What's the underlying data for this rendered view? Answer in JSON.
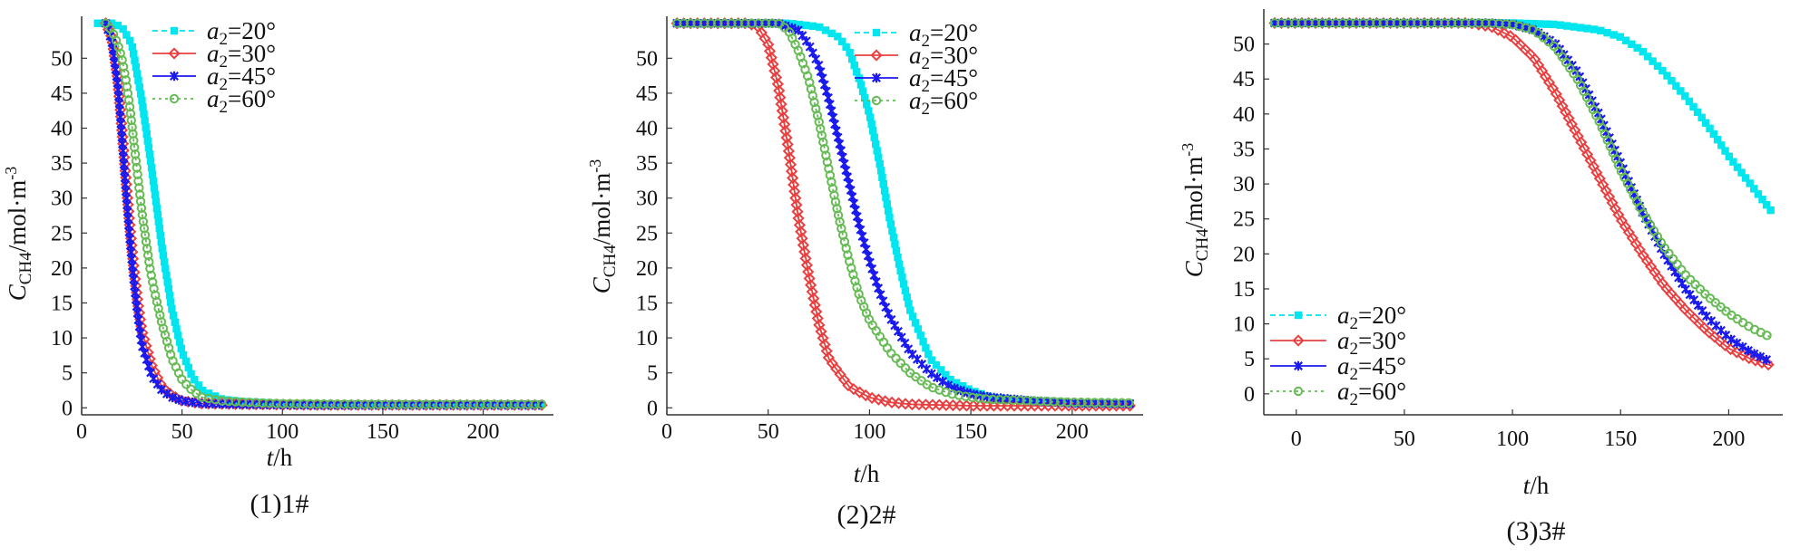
{
  "chart_data": [
    {
      "type": "line",
      "caption": "(1)1#",
      "ylabel": "C_CH4/mol·m^-3",
      "xlabel": "t/h",
      "xlim": [
        0,
        235
      ],
      "ylim": [
        -1,
        56
      ],
      "xticks": [
        0,
        50,
        100,
        150,
        200
      ],
      "yticks": [
        0,
        5,
        10,
        15,
        20,
        25,
        30,
        35,
        40,
        45,
        50
      ],
      "legend_position": "top-right",
      "series": [
        {
          "name": "a2=20°",
          "color": "#00e5ee",
          "marker": "square",
          "dash": "6,4",
          "x": [
            8,
            15,
            20,
            25,
            30,
            35,
            40,
            45,
            50,
            55,
            60,
            70,
            80,
            100,
            130,
            160,
            200,
            230
          ],
          "y": [
            55,
            55,
            54.5,
            52,
            44,
            34,
            23,
            14,
            8,
            4.5,
            2.5,
            1.2,
            0.9,
            0.6,
            0.5,
            0.5,
            0.5,
            0.5
          ]
        },
        {
          "name": "a2=30°",
          "color": "#e84040",
          "marker": "diamond",
          "dash": "",
          "x": [
            12,
            15,
            18,
            20,
            22,
            24,
            26,
            28,
            30,
            35,
            40,
            45,
            50,
            60,
            80,
            120,
            180,
            230
          ],
          "y": [
            55,
            53,
            47,
            40,
            33,
            26,
            20,
            15,
            11,
            6,
            3,
            1.8,
            1,
            0.6,
            0.5,
            0.4,
            0.4,
            0.4
          ]
        },
        {
          "name": "a2=45°",
          "color": "#1a1aee",
          "marker": "x",
          "dash": "",
          "x": [
            12,
            15,
            18,
            20,
            22,
            24,
            26,
            28,
            30,
            35,
            40,
            45,
            50,
            60,
            80,
            120,
            180,
            230
          ],
          "y": [
            55,
            52.5,
            46,
            39,
            31,
            24,
            18,
            13,
            9,
            4.5,
            2.5,
            1.5,
            1,
            0.6,
            0.5,
            0.4,
            0.4,
            0.4
          ]
        },
        {
          "name": "a2=60°",
          "color": "#66bb55",
          "marker": "circle",
          "dash": "3,4",
          "x": [
            12,
            15,
            18,
            20,
            22,
            24,
            26,
            28,
            30,
            32,
            34,
            36,
            40,
            45,
            50,
            55,
            60,
            70,
            80,
            100,
            140,
            230
          ],
          "y": [
            55,
            54,
            52,
            50,
            47,
            43,
            38,
            33,
            28,
            24,
            20,
            17,
            12,
            7,
            4,
            2.5,
            1.5,
            1,
            0.8,
            0.6,
            0.5,
            0.5
          ]
        }
      ]
    },
    {
      "type": "line",
      "caption": "(2)2#",
      "ylabel": "C_CH4/mol·m^-3",
      "xlabel": "t/h",
      "xlim": [
        0,
        235
      ],
      "ylim": [
        -1,
        56
      ],
      "xticks": [
        0,
        50,
        100,
        150,
        200
      ],
      "yticks": [
        0,
        5,
        10,
        15,
        20,
        25,
        30,
        35,
        40,
        45,
        50
      ],
      "legend_position": "top-right",
      "series": [
        {
          "name": "a2=20°",
          "color": "#00e5ee",
          "marker": "square",
          "dash": "6,4",
          "x": [
            5,
            20,
            40,
            60,
            75,
            85,
            90,
            95,
            100,
            105,
            110,
            115,
            120,
            130,
            140,
            150,
            160,
            180,
            200,
            230
          ],
          "y": [
            55,
            55,
            55,
            55,
            54.5,
            53,
            51,
            47,
            42,
            35,
            27,
            20,
            14,
            7,
            4,
            2.5,
            1.5,
            1,
            0.6,
            0.5
          ]
        },
        {
          "name": "a2=30°",
          "color": "#e84040",
          "marker": "diamond",
          "dash": "",
          "x": [
            5,
            20,
            40,
            45,
            50,
            55,
            60,
            65,
            70,
            75,
            80,
            90,
            100,
            110,
            120,
            150,
            180,
            230
          ],
          "y": [
            55,
            55,
            55,
            54.5,
            52,
            46,
            37,
            27,
            19,
            12,
            7,
            3,
            1.5,
            0.8,
            0.5,
            0.3,
            0.3,
            0.3
          ]
        },
        {
          "name": "a2=45°",
          "color": "#1a1aee",
          "marker": "x",
          "dash": "",
          "x": [
            5,
            20,
            40,
            55,
            65,
            70,
            75,
            80,
            85,
            90,
            95,
            100,
            105,
            110,
            120,
            130,
            140,
            150,
            160,
            180,
            200,
            230
          ],
          "y": [
            55,
            55,
            55,
            55,
            54,
            52,
            49,
            44,
            38,
            32,
            26,
            21,
            16.5,
            13,
            8,
            5,
            3,
            2,
            1.5,
            1,
            0.7,
            0.6
          ]
        },
        {
          "name": "a2=60°",
          "color": "#66bb55",
          "marker": "circle",
          "dash": "3,4",
          "x": [
            5,
            20,
            40,
            55,
            60,
            65,
            70,
            75,
            80,
            85,
            90,
            95,
            100,
            110,
            120,
            130,
            140,
            150,
            160,
            180,
            200,
            230
          ],
          "y": [
            55,
            55,
            55,
            55,
            54,
            51,
            47,
            41,
            34,
            27,
            21,
            16,
            12.5,
            8,
            5,
            3,
            2,
            1.5,
            1.2,
            1,
            0.8,
            0.7
          ]
        }
      ]
    },
    {
      "type": "line",
      "caption": "(3)3#",
      "ylabel": "C_CH4/mol·m^-3",
      "xlabel": "t/h",
      "xlim": [
        -15,
        225
      ],
      "ylim": [
        -3,
        55
      ],
      "xticks": [
        0,
        50,
        100,
        150,
        200
      ],
      "yticks": [
        0,
        5,
        10,
        15,
        20,
        25,
        30,
        35,
        40,
        45,
        50
      ],
      "legend_position": "bottom-left",
      "series": [
        {
          "name": "a2=20°",
          "color": "#00e5ee",
          "marker": "square",
          "dash": "6,4",
          "x": [
            -10,
            0,
            50,
            100,
            120,
            140,
            150,
            160,
            170,
            180,
            190,
            200,
            210,
            220
          ],
          "y": [
            53,
            53,
            53,
            53,
            52.8,
            52,
            51,
            49,
            46,
            42.5,
            38.5,
            34,
            30,
            26
          ]
        },
        {
          "name": "a2=30°",
          "color": "#e84040",
          "marker": "diamond",
          "dash": "",
          "x": [
            -10,
            0,
            50,
            80,
            90,
            100,
            110,
            120,
            130,
            140,
            150,
            160,
            170,
            180,
            190,
            200,
            210,
            220
          ],
          "y": [
            53,
            53,
            53,
            53,
            52.5,
            51,
            48,
            43,
            37,
            31,
            25,
            20,
            15.5,
            12,
            9,
            6.5,
            5,
            4
          ]
        },
        {
          "name": "a2=45°",
          "color": "#1a1aee",
          "marker": "x",
          "dash": "",
          "x": [
            -10,
            0,
            50,
            90,
            100,
            110,
            120,
            130,
            140,
            150,
            160,
            170,
            180,
            190,
            200,
            210,
            220
          ],
          "y": [
            53,
            53,
            53,
            53,
            52.8,
            52,
            50,
            46,
            40,
            33,
            26,
            20,
            15,
            11,
            8,
            6,
            4.5
          ]
        },
        {
          "name": "a2=60°",
          "color": "#66bb55",
          "marker": "circle",
          "dash": "3,4",
          "x": [
            -10,
            0,
            50,
            90,
            100,
            110,
            120,
            130,
            140,
            150,
            160,
            170,
            180,
            190,
            200,
            210,
            220
          ],
          "y": [
            53,
            53,
            53,
            53,
            52.8,
            52,
            49.5,
            45,
            39,
            32,
            26,
            21,
            17,
            14,
            11.5,
            9.5,
            8
          ]
        }
      ]
    }
  ]
}
